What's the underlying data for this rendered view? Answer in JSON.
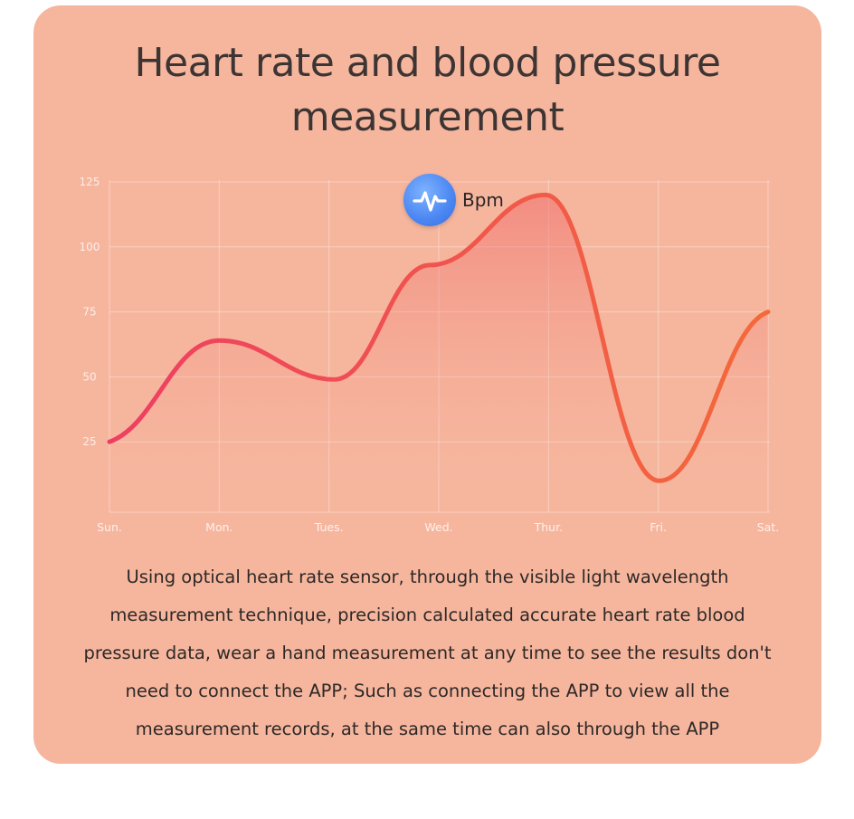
{
  "title_lines": [
    "Heart rate and blood pressure",
    "measurement"
  ],
  "bpm_label": "Bpm",
  "icon": "heartbeat-pulse-icon",
  "description": "Using optical heart rate sensor, through the visible light wavelength measurement technique, precision calculated accurate heart rate blood pressure data, wear a hand measurement at any time to see the results don't need to connect the APP; Such as connecting the APP to view all the measurement records, at the same time can also through the APP",
  "colors": {
    "card": "#f6b69e",
    "line_start": "#ee3f62",
    "line_end": "#f4693a",
    "badge": "#4a86f2"
  },
  "chart_data": {
    "type": "line",
    "categories": [
      "Sun.",
      "Mon.",
      "Tues.",
      "Wed.",
      "Thur.",
      "Fri.",
      "Sat."
    ],
    "series": [
      {
        "name": "Bpm",
        "values": [
          25,
          64,
          49,
          93,
          120,
          10,
          75
        ],
        "x": [
          0,
          1,
          2.05,
          2.92,
          3.97,
          5.01,
          6
        ]
      }
    ],
    "y_ticks": [
      25,
      50,
      75,
      100,
      125
    ],
    "ylim": [
      0,
      125
    ],
    "grid": true,
    "smooth": true,
    "area_fill": true,
    "title": "",
    "xlabel": "",
    "ylabel": ""
  }
}
